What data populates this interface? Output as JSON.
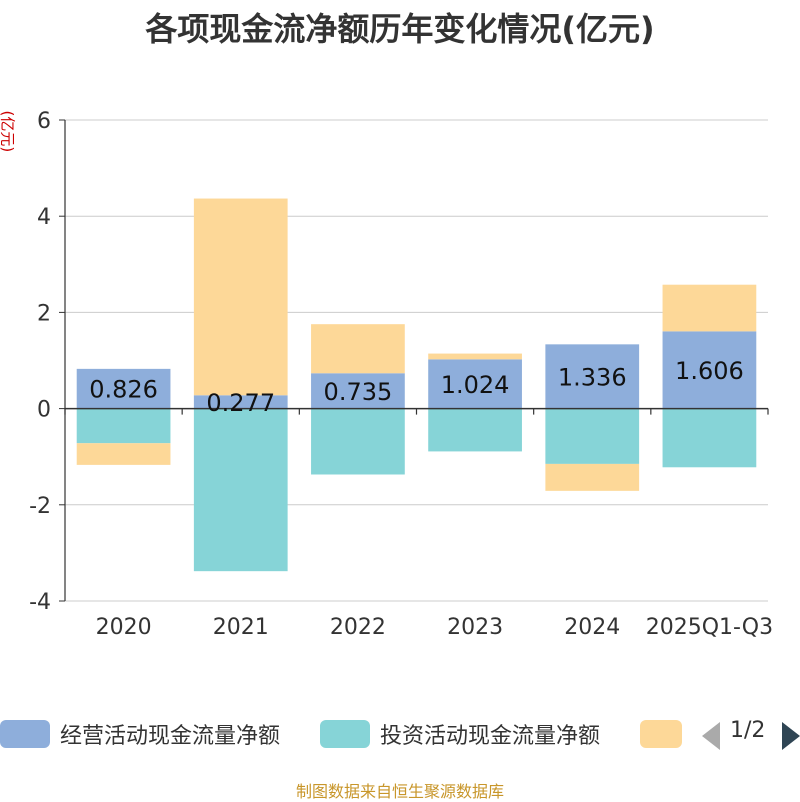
{
  "chart_data": {
    "type": "bar",
    "stacked": true,
    "title": "各项现金流净额历年变化情况(亿元)",
    "ylabel": "(亿元)",
    "xlabel": "",
    "ylim": [
      -4,
      6
    ],
    "yticks": [
      -4,
      -2,
      0,
      2,
      4,
      6
    ],
    "categories": [
      "2020",
      "2021",
      "2022",
      "2023",
      "2024",
      "2025Q1-Q3"
    ],
    "series": [
      {
        "name": "经营活动现金流量净额",
        "color": "#8eaedb",
        "values": [
          0.826,
          0.277,
          0.735,
          1.024,
          1.336,
          1.606
        ],
        "labels": [
          "0.826",
          "0.277",
          "0.735",
          "1.024",
          "1.336",
          "1.606"
        ]
      },
      {
        "name": "投资活动现金流量净额",
        "color": "#86d4d7",
        "values": [
          -0.72,
          -3.38,
          -1.37,
          -0.89,
          -1.15,
          -1.22
        ]
      },
      {
        "name": "",
        "color": "#fdd898",
        "values": [
          -0.45,
          4.09,
          1.02,
          0.12,
          -0.56,
          0.97
        ]
      }
    ],
    "legend_position": "bottom",
    "grid": true
  },
  "pager": {
    "text": "1/2"
  },
  "source": "制图数据来自恒生聚源数据库"
}
